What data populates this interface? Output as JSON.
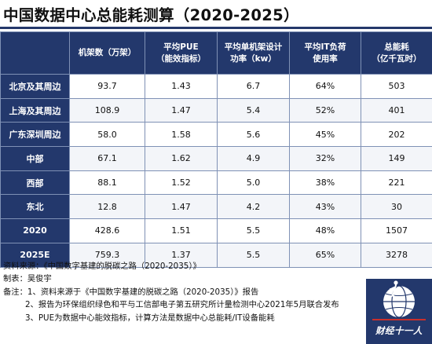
{
  "title": "中国数据中心总能耗测算（2020-2025）",
  "table": {
    "headers": [
      {
        "line1": "",
        "line2": ""
      },
      {
        "line1": "机架数（万架）",
        "line2": ""
      },
      {
        "line1": "平均PUE",
        "line2": "（能效指标）"
      },
      {
        "line1": "平均单机架设计",
        "line2": "功率（kw）"
      },
      {
        "line1": "平均IT负荷",
        "line2": "使用率"
      },
      {
        "line1": "总能耗",
        "line2": "（亿千瓦时）"
      }
    ],
    "rows": [
      {
        "region": "北京及其周边",
        "racks": "93.7",
        "pue": "1.43",
        "power": "6.7",
        "it_load": "64%",
        "energy": "503"
      },
      {
        "region": "上海及其周边",
        "racks": "108.9",
        "pue": "1.47",
        "power": "5.4",
        "it_load": "52%",
        "energy": "401"
      },
      {
        "region": "广东深圳周边",
        "racks": "58.0",
        "pue": "1.58",
        "power": "5.6",
        "it_load": "45%",
        "energy": "202"
      },
      {
        "region": "中部",
        "racks": "67.1",
        "pue": "1.62",
        "power": "4.9",
        "it_load": "32%",
        "energy": "149"
      },
      {
        "region": "西部",
        "racks": "88.1",
        "pue": "1.52",
        "power": "5.0",
        "it_load": "38%",
        "energy": "221"
      },
      {
        "region": "东北",
        "racks": "12.8",
        "pue": "1.47",
        "power": "4.2",
        "it_load": "43%",
        "energy": "30"
      },
      {
        "region": "2020",
        "racks": "428.6",
        "pue": "1.51",
        "power": "5.5",
        "it_load": "48%",
        "energy": "1507"
      },
      {
        "region": "2025E",
        "racks": "759.3",
        "pue": "1.37",
        "power": "5.5",
        "it_load": "65%",
        "energy": "3278"
      }
    ]
  },
  "source": "资料来源：《中国数字基建的脱碳之路（2020-2035）》",
  "author": "制表：吴俊宇",
  "notes": [
    "备注：1、资料来源于《中国数字基建的脱碳之路（2020-2035）》报告",
    "2、报告为环保组织绿色和平与工信部电子第五研究所计量检测中心2021年5月联合发布",
    "3、PUE为数据中心能效指标，计算方法是数据中心总能耗/IT设备能耗"
  ],
  "logo": {
    "text": "财经十一人",
    "icon": "globe-runner-icon"
  },
  "colors": {
    "header_bg": "#23386c",
    "border": "#7f91b5",
    "text": "#111111"
  }
}
